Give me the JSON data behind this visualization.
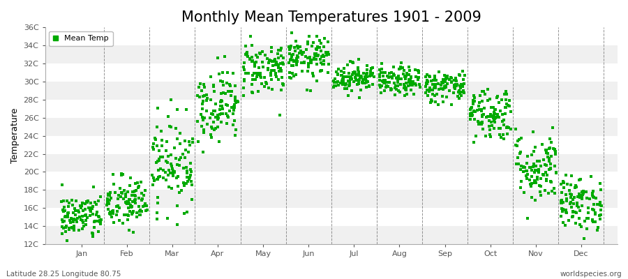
{
  "title": "Monthly Mean Temperatures 1901 - 2009",
  "ylabel": "Temperature",
  "xlabel_months": [
    "Jan",
    "Feb",
    "Mar",
    "Apr",
    "May",
    "Jun",
    "Jul",
    "Aug",
    "Sep",
    "Oct",
    "Nov",
    "Dec"
  ],
  "ytick_labels": [
    "12C",
    "14C",
    "16C",
    "18C",
    "20C",
    "22C",
    "24C",
    "26C",
    "28C",
    "30C",
    "32C",
    "34C",
    "36C"
  ],
  "ytick_values": [
    12,
    14,
    16,
    18,
    20,
    22,
    24,
    26,
    28,
    30,
    32,
    34,
    36
  ],
  "ylim": [
    12,
    36
  ],
  "dot_color": "#00AA00",
  "dot_size": 5,
  "background_color": "#ffffff",
  "panel_bg_even": "#f0f0f0",
  "panel_bg_odd": "#ffffff",
  "grid_color": "#666666",
  "title_fontsize": 15,
  "axis_label_fontsize": 9,
  "tick_fontsize": 8,
  "footer_left": "Latitude 28.25 Longitude 80.75",
  "footer_right": "worldspecies.org",
  "legend_label": "Mean Temp",
  "monthly_means": [
    15.0,
    16.5,
    21.0,
    27.5,
    31.5,
    32.5,
    30.5,
    30.0,
    29.5,
    26.5,
    20.5,
    16.5
  ],
  "monthly_stds": [
    1.3,
    1.5,
    2.5,
    2.0,
    1.5,
    1.2,
    0.8,
    0.8,
    0.9,
    1.5,
    2.0,
    1.5
  ],
  "n_years": 109,
  "xlim": [
    0,
    13
  ],
  "month_boundaries": [
    1,
    2,
    3,
    4,
    5,
    6,
    7,
    8,
    9,
    10,
    11,
    12
  ]
}
